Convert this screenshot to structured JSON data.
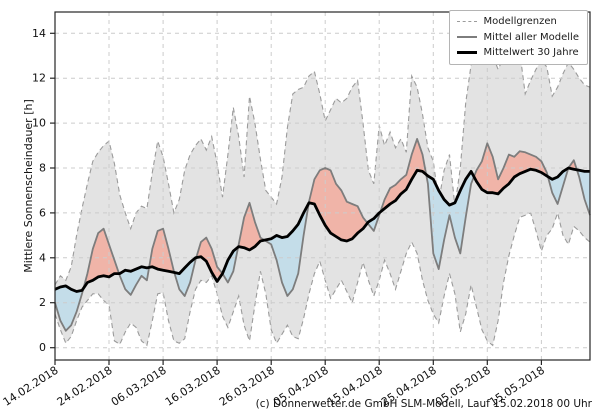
{
  "caption": "(c) Donnerwetter.de GmbH SLM-Modell, Lauf 15.02.2018 00 Uhr",
  "chart_data": {
    "type": "line",
    "title": "",
    "xlabel": "",
    "ylabel": "Mittlere Sonnenscheindauer [h]",
    "ylim": [
      -0.55,
      14.95
    ],
    "yticks": [
      0,
      2,
      4,
      6,
      8,
      10,
      12,
      14
    ],
    "grid": true,
    "n_days": 100,
    "x_unit": "Tage ab 14.02.2018",
    "xtick_days": [
      0,
      10,
      20,
      30,
      40,
      50,
      60,
      70,
      80,
      90
    ],
    "xtick_labels": [
      "14.02.2018",
      "24.02.2018",
      "06.03.2018",
      "16.03.2018",
      "26.03.2018",
      "05.04.2018",
      "15.04.2018",
      "25.04.2018",
      "05.05.2018",
      "15.05.2018"
    ],
    "legend": [
      "Modellgrenzen",
      "Mittel aller Modelle",
      "Mittelwert 30 Jahre"
    ],
    "legend_position": "upper right",
    "colors": {
      "band": "#e3e3e3",
      "band_edge": "#9b9b9b",
      "above_mean_fill": "#f0b4a8",
      "below_mean_fill": "#c4dde9",
      "model_mean_line": "#7d7d7d",
      "mean_30y_line": "#000000",
      "grid": "#cccccc",
      "spine": "#262626"
    },
    "series": [
      {
        "name": "Modellgrenzen oben",
        "role": "band_upper",
        "values": [
          2.8,
          3.2,
          3.0,
          3.6,
          5.0,
          6.2,
          7.3,
          8.3,
          8.7,
          9.0,
          9.2,
          8.2,
          6.8,
          6.0,
          5.3,
          6.0,
          6.3,
          6.2,
          7.8,
          9.2,
          8.5,
          7.3,
          6.0,
          6.6,
          7.9,
          8.6,
          9.0,
          9.3,
          8.8,
          9.4,
          8.2,
          6.7,
          8.6,
          10.7,
          9.4,
          7.6,
          11.2,
          10.0,
          8.4,
          7.0,
          6.7,
          6.4,
          7.6,
          9.8,
          11.3,
          11.5,
          11.6,
          12.1,
          12.3,
          11.3,
          10.1,
          10.6,
          11.1,
          10.9,
          11.1,
          11.6,
          11.9,
          10.0,
          7.9,
          7.3,
          9.9,
          9.0,
          9.6,
          8.9,
          9.3,
          8.7,
          12.1,
          11.6,
          10.4,
          8.9,
          8.3,
          6.5,
          7.9,
          8.6,
          6.3,
          8.0,
          10.9,
          12.6,
          13.1,
          13.0,
          13.2,
          13.0,
          12.4,
          12.9,
          13.3,
          13.0,
          13.2,
          11.3,
          11.9,
          12.4,
          12.8,
          12.5,
          11.2,
          11.6,
          12.2,
          12.7,
          12.4,
          12.0,
          11.7,
          11.6
        ]
      },
      {
        "name": "Modellgrenzen unten",
        "role": "band_lower",
        "values": [
          1.5,
          0.8,
          0.2,
          0.5,
          1.2,
          1.8,
          2.1,
          2.4,
          2.4,
          2.1,
          1.9,
          0.3,
          0.15,
          0.7,
          1.1,
          0.9,
          0.3,
          0.1,
          1.2,
          2.4,
          2.45,
          1.2,
          0.3,
          0.2,
          0.4,
          1.6,
          2.6,
          3.0,
          2.9,
          3.2,
          2.4,
          1.4,
          0.9,
          1.6,
          2.3,
          1.0,
          0.3,
          1.9,
          3.4,
          2.4,
          0.8,
          0.2,
          0.6,
          1.0,
          0.5,
          0.4,
          1.3,
          2.4,
          3.3,
          3.85,
          3.0,
          2.2,
          2.6,
          3.0,
          2.5,
          2.0,
          2.9,
          3.8,
          3.0,
          2.3,
          3.0,
          3.9,
          3.3,
          2.6,
          3.4,
          4.2,
          4.7,
          4.2,
          3.0,
          2.1,
          1.5,
          1.1,
          2.3,
          3.3,
          2.4,
          0.7,
          1.5,
          2.8,
          1.8,
          0.8,
          0.3,
          0.1,
          1.2,
          2.9,
          4.1,
          5.0,
          5.8,
          5.9,
          6.0,
          5.2,
          4.3,
          5.0,
          5.3,
          6.0,
          5.0,
          4.6,
          5.4,
          5.2,
          4.9,
          4.7
        ]
      },
      {
        "name": "Mittel aller Modelle",
        "role": "model_mean",
        "values": [
          2.0,
          1.2,
          0.75,
          1.0,
          1.6,
          2.4,
          3.3,
          4.4,
          5.1,
          5.3,
          4.6,
          3.9,
          3.2,
          2.6,
          2.35,
          2.8,
          3.2,
          3.0,
          4.4,
          5.2,
          5.3,
          4.4,
          3.4,
          2.6,
          2.3,
          2.9,
          3.9,
          4.7,
          4.9,
          4.4,
          3.6,
          3.3,
          2.9,
          3.4,
          4.6,
          5.8,
          6.45,
          5.6,
          4.9,
          4.75,
          4.6,
          3.9,
          2.9,
          2.3,
          2.6,
          3.3,
          5.0,
          6.5,
          7.5,
          7.9,
          8.0,
          7.9,
          7.3,
          7.0,
          6.5,
          6.4,
          6.3,
          5.8,
          5.5,
          5.2,
          5.9,
          6.6,
          7.1,
          7.25,
          7.5,
          7.7,
          8.6,
          9.3,
          8.6,
          7.3,
          4.2,
          3.5,
          4.8,
          5.9,
          4.9,
          4.2,
          5.8,
          7.3,
          7.9,
          8.3,
          9.1,
          8.5,
          7.5,
          8.0,
          8.6,
          8.5,
          8.75,
          8.7,
          8.6,
          8.5,
          8.3,
          7.8,
          6.9,
          6.4,
          7.2,
          8.0,
          8.35,
          7.6,
          6.6,
          5.9
        ]
      },
      {
        "name": "Mittelwert 30 Jahre",
        "role": "mean_30y",
        "values": [
          2.6,
          2.7,
          2.75,
          2.6,
          2.5,
          2.55,
          2.9,
          3.0,
          3.15,
          3.2,
          3.15,
          3.3,
          3.3,
          3.45,
          3.4,
          3.5,
          3.6,
          3.55,
          3.6,
          3.5,
          3.45,
          3.4,
          3.35,
          3.3,
          3.55,
          3.8,
          4.0,
          4.05,
          3.85,
          3.35,
          2.95,
          3.3,
          3.9,
          4.3,
          4.5,
          4.45,
          4.35,
          4.5,
          4.75,
          4.8,
          4.85,
          5.0,
          4.9,
          4.95,
          5.2,
          5.5,
          6.0,
          6.45,
          6.4,
          5.9,
          5.45,
          5.1,
          4.95,
          4.8,
          4.75,
          4.85,
          5.1,
          5.3,
          5.6,
          5.75,
          6.0,
          6.2,
          6.4,
          6.55,
          6.85,
          7.05,
          7.5,
          7.9,
          7.85,
          7.65,
          7.5,
          7.0,
          6.6,
          6.35,
          6.45,
          7.0,
          7.5,
          7.85,
          7.4,
          7.05,
          6.9,
          6.9,
          6.85,
          7.1,
          7.3,
          7.6,
          7.75,
          7.85,
          7.95,
          7.9,
          7.8,
          7.65,
          7.5,
          7.6,
          7.85,
          8.0,
          7.95,
          7.9,
          7.85,
          7.85
        ]
      }
    ]
  }
}
